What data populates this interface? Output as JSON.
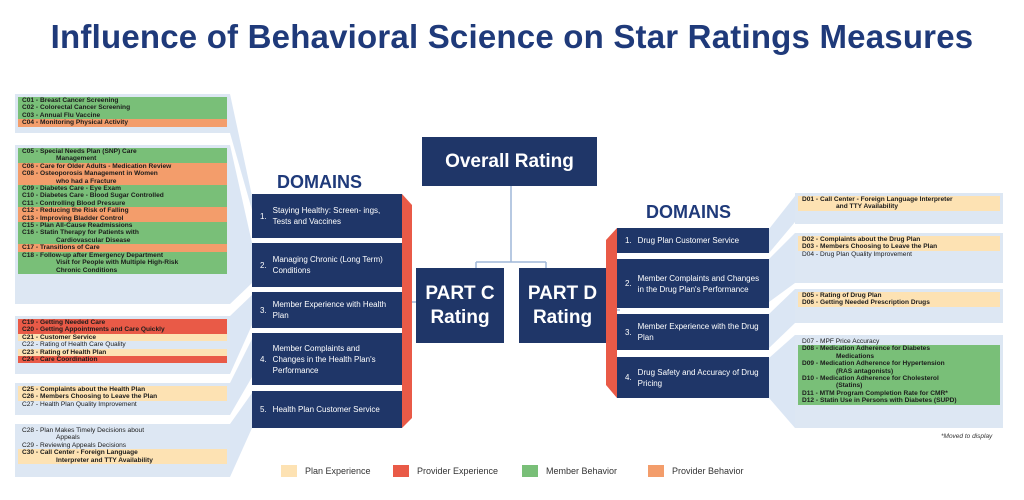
{
  "title": "Influence of Behavioral Science on Star Ratings Measures",
  "overall_rating": "Overall Rating",
  "part_c": {
    "line1": "PART C",
    "line2": "Rating",
    "domains_title": "DOMAINS",
    "domains": [
      {
        "num": "1.",
        "label": "Staying Healthy: Screen- ings, Tests and Vaccines"
      },
      {
        "num": "2.",
        "label": "Managing Chronic (Long Term) Conditions"
      },
      {
        "num": "3.",
        "label": "Member Experience with Health Plan"
      },
      {
        "num": "4.",
        "label": "Member Complaints and Changes in the Health Plan's Performance"
      },
      {
        "num": "5.",
        "label": "Health Plan Customer Service"
      }
    ],
    "measure_groups": [
      {
        "items": [
          {
            "text": "C01 - Breast Cancer Screening",
            "cat": "green"
          },
          {
            "text": "C02 - Colorectal Cancer Screening",
            "cat": "green"
          },
          {
            "text": "C03 - Annual Flu Vaccine",
            "cat": "green"
          },
          {
            "text": "C04 - Monitoring Physical Activity",
            "cat": "orange"
          }
        ]
      },
      {
        "items": [
          {
            "text": "C05 - Special Needs Plan (SNP) Care",
            "cat": "green"
          },
          {
            "text": "Management",
            "cat": "green",
            "sub": true
          },
          {
            "text": "C06 - Care for Older Adults - Medication Review",
            "cat": "orange"
          },
          {
            "text": "C08 - Osteoporosis Management in Women",
            "cat": "orange"
          },
          {
            "text": "who had a Fracture",
            "cat": "orange",
            "sub": true
          },
          {
            "text": "C09 - Diabetes Care - Eye Exam",
            "cat": "green"
          },
          {
            "text": "C10 - Diabetes Care - Blood Sugar Controlled",
            "cat": "green"
          },
          {
            "text": "C11 - Controlling Blood Pressure",
            "cat": "green"
          },
          {
            "text": "C12 - Reducing the Risk of Falling",
            "cat": "orange"
          },
          {
            "text": "C13 - Improving Bladder Control",
            "cat": "orange"
          },
          {
            "text": "C15 - Plan All-Cause Readmissions",
            "cat": "green"
          },
          {
            "text": "C16 - Statin Therapy for Patients with",
            "cat": "green"
          },
          {
            "text": "Cardiovascular Disease",
            "cat": "green",
            "sub": true
          },
          {
            "text": "C17 - Transitions of Care",
            "cat": "orange"
          },
          {
            "text": "C18 - Follow-up after Emergency Department",
            "cat": "green"
          },
          {
            "text": "Visit for People with Multiple High-Risk",
            "cat": "green",
            "sub": true
          },
          {
            "text": "Chronic Conditions",
            "cat": "green",
            "sub": true
          }
        ]
      },
      {
        "items": [
          {
            "text": "C19 - Getting Needed Care",
            "cat": "red"
          },
          {
            "text": "C20 - Getting Appointments and Care Quickly",
            "cat": "red"
          },
          {
            "text": "C21 - Customer Service",
            "cat": "cream"
          },
          {
            "text": "C22 - Rating of Health Care Quality",
            "cat": "none"
          },
          {
            "text": "C23 - Rating of Health Plan",
            "cat": "cream"
          },
          {
            "text": "C24 - Care Coordination",
            "cat": "red"
          }
        ]
      },
      {
        "items": [
          {
            "text": "C25 - Complaints about the Health Plan",
            "cat": "cream"
          },
          {
            "text": "C26 - Members Choosing to Leave the Plan",
            "cat": "cream"
          },
          {
            "text": "C27 - Health Plan Quality Improvement",
            "cat": "none"
          }
        ]
      },
      {
        "items": [
          {
            "text": "C28 - Plan Makes Timely Decisions about",
            "cat": "none"
          },
          {
            "text": "Appeals",
            "cat": "none",
            "sub": true
          },
          {
            "text": "C29 - Reviewing Appeals Decisions",
            "cat": "none"
          },
          {
            "text": "C30 - Call Center - Foreign Language",
            "cat": "cream"
          },
          {
            "text": "Interpreter and TTY Availability",
            "cat": "cream",
            "sub": true
          }
        ]
      }
    ]
  },
  "part_d": {
    "line1": "PART D",
    "line2": "Rating",
    "domains_title": "DOMAINS",
    "domains": [
      {
        "num": "1.",
        "label": "Drug Plan Customer Service"
      },
      {
        "num": "2.",
        "label": "Member Complaints and Changes in the Drug Plan's Performance"
      },
      {
        "num": "3.",
        "label": "Member Experience with the Drug Plan"
      },
      {
        "num": "4.",
        "label": "Drug Safety and Accuracy of Drug Pricing"
      }
    ],
    "measure_groups": [
      {
        "items": [
          {
            "text": "D01 - Call Center - Foreign Language Interpreter",
            "cat": "cream"
          },
          {
            "text": "and TTY Availability",
            "cat": "cream",
            "sub": true
          }
        ]
      },
      {
        "items": [
          {
            "text": "D02 - Complaints about the Drug Plan",
            "cat": "cream"
          },
          {
            "text": "D03 - Members Choosing to Leave the Plan",
            "cat": "cream"
          },
          {
            "text": "D04 - Drug Plan Quality Improvement",
            "cat": "none"
          }
        ]
      },
      {
        "items": [
          {
            "text": "D05 - Rating of Drug Plan",
            "cat": "cream"
          },
          {
            "text": "D06 - Getting Needed Prescription Drugs",
            "cat": "cream"
          }
        ]
      },
      {
        "items": [
          {
            "text": "D07 - MPF Price Accuracy",
            "cat": "none"
          },
          {
            "text": "D08 - Medication Adherence for Diabetes",
            "cat": "green"
          },
          {
            "text": "Medications",
            "cat": "green",
            "sub": true
          },
          {
            "text": "D09 - Medication Adherence for Hypertension",
            "cat": "green"
          },
          {
            "text": "(RAS antagonists)",
            "cat": "green",
            "sub": true
          },
          {
            "text": "D10 - Medication Adherence for Cholesterol",
            "cat": "green"
          },
          {
            "text": "(Statins)",
            "cat": "green",
            "sub": true
          },
          {
            "text": "D11 - MTM Program Completion Rate for CMR*",
            "cat": "green"
          },
          {
            "text": "D12 - Statin Use in Persons with Diabetes (SUPD)",
            "cat": "green"
          }
        ]
      }
    ]
  },
  "note": "*Moved to display",
  "legend": [
    {
      "label": "Plan Experience",
      "color": "#fde2b3"
    },
    {
      "label": "Provider Experience",
      "color": "#e95a47"
    },
    {
      "label": "Member Behavior",
      "color": "#79bf78"
    },
    {
      "label": "Provider Behavior",
      "color": "#f39d6b"
    }
  ]
}
